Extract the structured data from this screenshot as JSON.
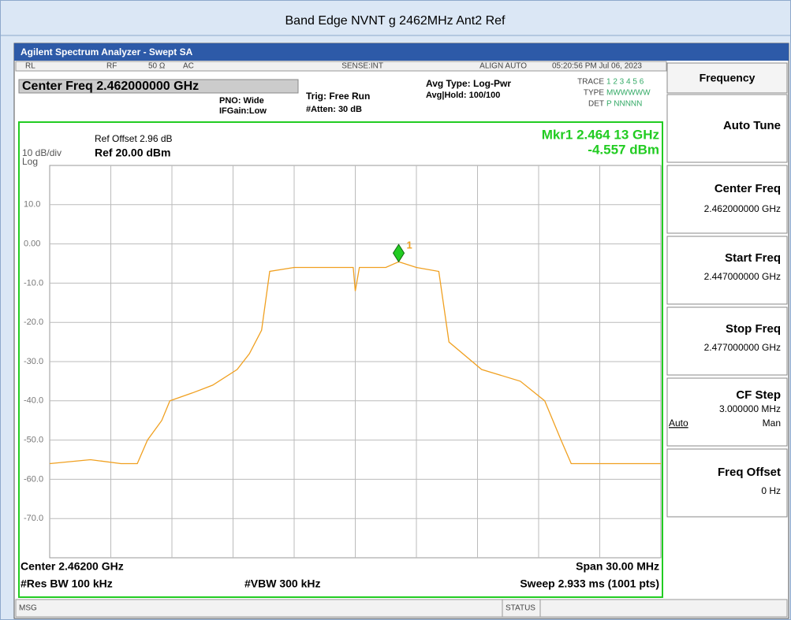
{
  "title": "Band Edge NVNT g 2462MHz Ant2 Ref",
  "window_title": "Agilent Spectrum Analyzer - Swept SA",
  "status_bar": [
    "RL",
    "RF",
    "50 Ω",
    "AC",
    "SENSE:INT",
    "ALIGN AUTO",
    "05:20:56 PM Jul 06, 2023"
  ],
  "header": {
    "center_freq": "Center Freq 2.462000000 GHz",
    "pno": "PNO: Wide",
    "ifgain": "IFGain:Low",
    "trig": "Trig: Free Run",
    "atten": "#Atten: 30 dB",
    "avg_type": "Avg Type: Log-Pwr",
    "avg_hold": "Avg|Hold: 100/100",
    "trace_label": "TRACE",
    "trace_value": "1 2 3 4 5 6",
    "type_label": "TYPE",
    "type_value": "MWWWWW",
    "det_label": "DET",
    "det_value": "P NNNNN"
  },
  "chart_data": {
    "type": "line",
    "ref_offset": "Ref Offset 2.96 dB",
    "scale": "10 dB/div",
    "log": "Log",
    "ref_level": "Ref 20.00 dBm",
    "marker": "Mkr1 2.464 13 GHz",
    "marker_value": "-4.557 dBm",
    "marker_label": "1",
    "color": "#f0a020",
    "x": [
      2.447,
      2.449,
      2.4505,
      2.4513,
      2.4518,
      2.4525,
      2.4529,
      2.454,
      2.455,
      2.4562,
      2.4568,
      2.4574,
      2.4578,
      2.459,
      2.461,
      2.4619,
      2.462,
      2.4622,
      2.4635,
      2.46413,
      2.465,
      2.4661,
      2.4666,
      2.4682,
      2.4701,
      2.4713,
      2.4721,
      2.4726,
      2.474,
      2.477
    ],
    "values": [
      -56,
      -55,
      -56,
      -56,
      -50,
      -45,
      -40,
      -38,
      -36,
      -32,
      -28,
      -22,
      -7,
      -6,
      -6,
      -6,
      -12,
      -6,
      -6,
      -4.557,
      -6,
      -7,
      -25,
      -32,
      -35,
      -40,
      -50,
      -56,
      -56,
      -56
    ],
    "marker_index": 19,
    "xlim": [
      2.447,
      2.477
    ],
    "ylim": [
      -80,
      20
    ],
    "yticks": [
      {
        "value": 10,
        "label": "10.0"
      },
      {
        "value": 0,
        "label": "0.00"
      },
      {
        "value": -10,
        "label": "-10.0"
      },
      {
        "value": -20,
        "label": "-20.0"
      },
      {
        "value": -30,
        "label": "-30.0"
      },
      {
        "value": -40,
        "label": "-40.0"
      },
      {
        "value": -50,
        "label": "-50.0"
      },
      {
        "value": -60,
        "label": "-60.0"
      },
      {
        "value": -70,
        "label": "-70.0"
      }
    ],
    "grid": true
  },
  "footer": {
    "center": "Center 2.46200 GHz",
    "span": "Span 30.00 MHz",
    "res_bw": "#Res BW 100 kHz",
    "vbw": "#VBW 300 kHz",
    "sweep": "Sweep  2.933 ms (1001 pts)"
  },
  "softkeys": {
    "title": "Frequency",
    "auto_tune": "Auto Tune",
    "center_freq": {
      "label": "Center Freq",
      "value": "2.462000000 GHz"
    },
    "start_freq": {
      "label": "Start Freq",
      "value": "2.447000000 GHz"
    },
    "stop_freq": {
      "label": "Stop Freq",
      "value": "2.477000000 GHz"
    },
    "cf_step": {
      "label": "CF Step",
      "value": "3.000000 MHz",
      "options": [
        "Auto",
        "Man"
      ]
    },
    "freq_offset": {
      "label": "Freq Offset",
      "value": "0 Hz"
    }
  },
  "message_bar": {
    "msg": "MSG",
    "status": "STATUS"
  }
}
